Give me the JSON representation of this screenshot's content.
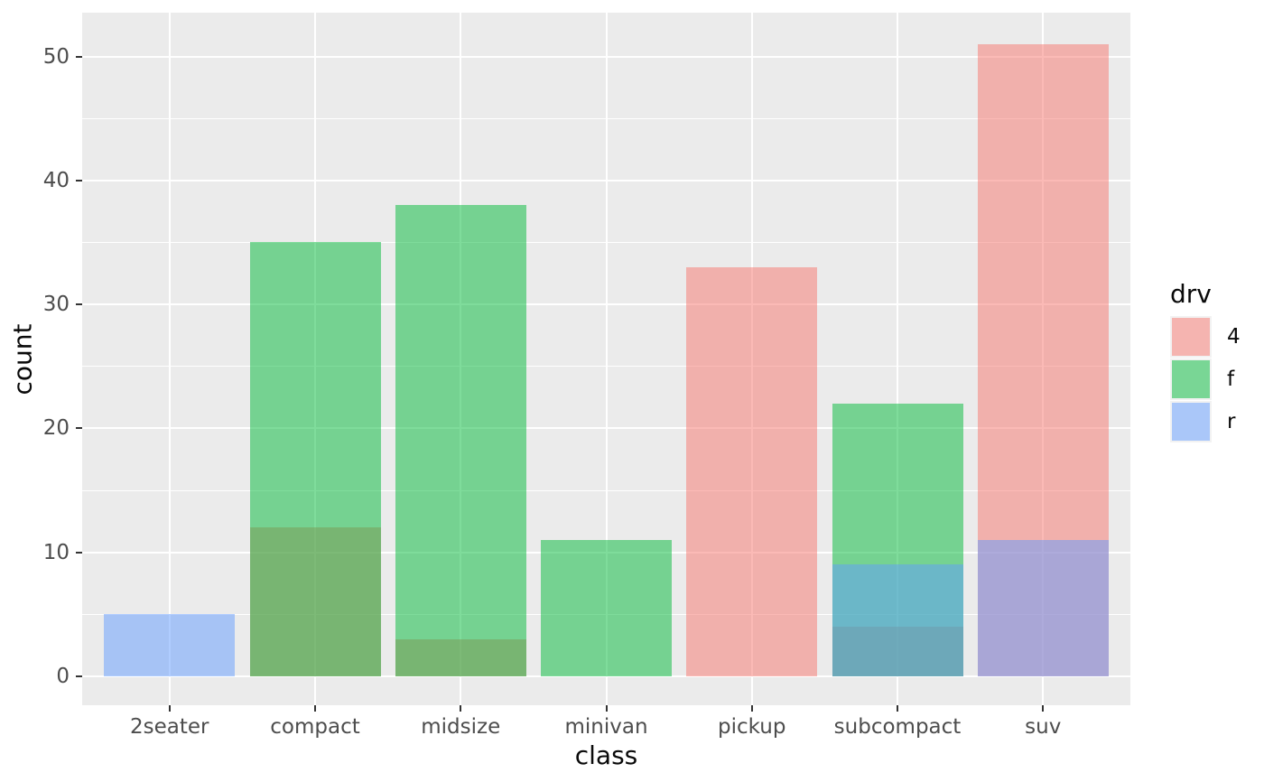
{
  "chart_data": {
    "type": "bar",
    "variant": "overlaid-identity-alpha",
    "title": "",
    "xlabel": "class",
    "ylabel": "count",
    "categories": [
      "2seater",
      "compact",
      "midsize",
      "minivan",
      "pickup",
      "subcompact",
      "suv"
    ],
    "series": [
      {
        "name": "4",
        "color": "#F8766D",
        "values": [
          0,
          12,
          3,
          0,
          33,
          4,
          51
        ]
      },
      {
        "name": "f",
        "color": "#00BA38",
        "values": [
          0,
          35,
          38,
          11,
          0,
          22,
          0
        ]
      },
      {
        "name": "r",
        "color": "#619CFF",
        "values": [
          5,
          0,
          0,
          0,
          0,
          9,
          11
        ]
      }
    ],
    "fill_alpha": 0.5,
    "yticks": [
      0,
      10,
      20,
      30,
      40,
      50
    ],
    "yticks_minor": [
      5,
      15,
      25,
      35,
      45
    ],
    "ylim": [
      -2.4,
      53.5
    ],
    "grid": "major+minor horizontal, major vertical",
    "legend": {
      "title": "drv",
      "position": "right",
      "entries": [
        "4",
        "f",
        "r"
      ]
    },
    "panel_bg": "#EBEBEB",
    "grid_color": "#FFFFFF",
    "tick_text_color": "#4d4d4d",
    "title_text_color": "#0a0a0a"
  }
}
